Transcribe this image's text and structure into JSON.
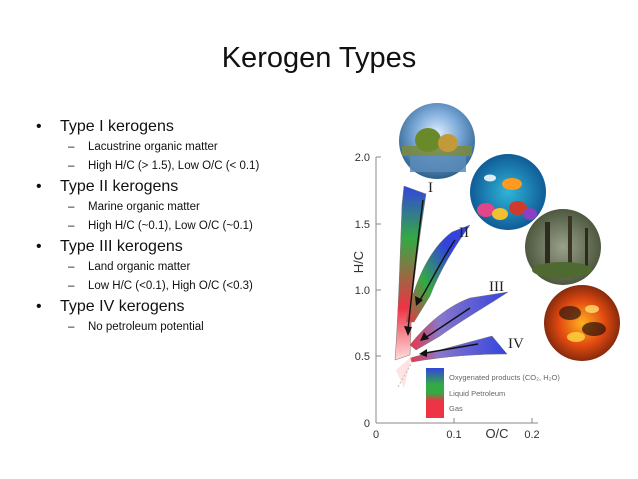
{
  "slide": {
    "title": "Kerogen Types",
    "bullets": [
      {
        "text": "Type I kerogens",
        "subs": [
          "Lacustrine organic matter",
          "High H/C (> 1.5), Low O/C (< 0.1)"
        ]
      },
      {
        "text": "Type II kerogens",
        "subs": [
          "Marine organic matter",
          "High H/C (~0.1), Low O/C (~0.1)"
        ]
      },
      {
        "text": "Type III kerogens",
        "subs": [
          "Land organic matter",
          "Low H/C (<0.1), High O/C (<0.3)"
        ]
      },
      {
        "text": "Type IV kerogens",
        "subs": [
          "No petroleum potential"
        ]
      }
    ],
    "bullet_glyph": "•",
    "dash_glyph": "–"
  },
  "diagram": {
    "ylabel": "H/C",
    "xlabel": "O/C",
    "y_ticks": [
      "2.0",
      "1.5",
      "1.0",
      "0.5",
      "0"
    ],
    "x_ticks": [
      "0",
      "0.1",
      "0.2"
    ],
    "type_labels": [
      "I",
      "II",
      "III",
      "IV"
    ],
    "legend": [
      "Oxygenated products (CO₂, H₂O)",
      "Liquid Petroleum",
      "Gas"
    ],
    "colors": {
      "oxygenated": "#3344dd",
      "petroleum": "#33aa44",
      "gas": "#ee3344"
    },
    "photos": [
      "lake-landscape-photo",
      "coral-reef-photo",
      "forest-photo",
      "burning-coal-photo"
    ]
  }
}
